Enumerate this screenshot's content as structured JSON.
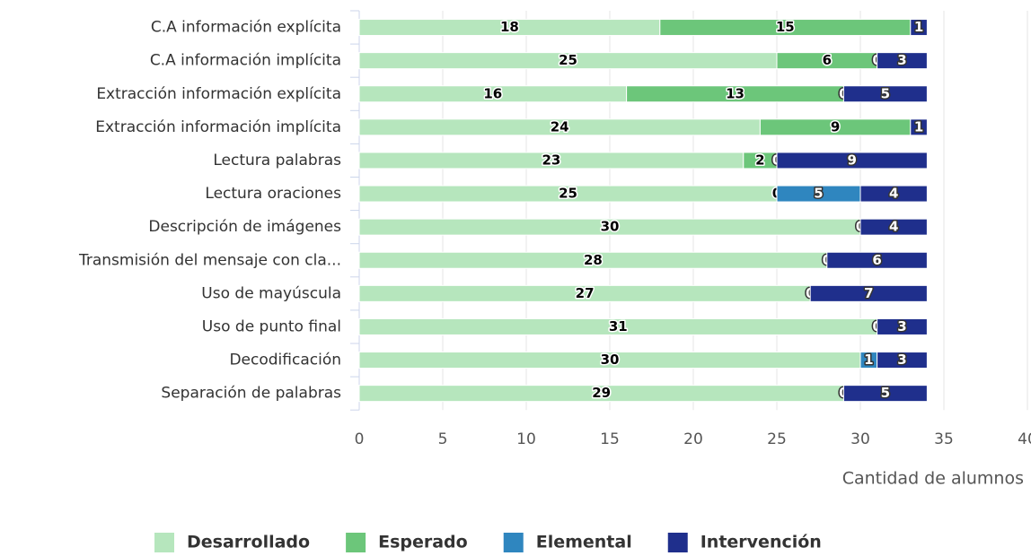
{
  "chart_data": {
    "type": "stacked_barh",
    "categories": [
      "C.A información explícita",
      "C.A información implícita",
      "Extracción información explícita",
      "Extracción información implícita",
      "Lectura palabras",
      "Lectura oraciones",
      "Descripción de imágenes",
      "Transmisión del mensaje con cla...",
      "Uso de mayúscula",
      "Uso de punto final",
      "Decodificación",
      "Separación de palabras"
    ],
    "series": [
      {
        "name": "Desarrollado",
        "color": "#b6e6bd",
        "values": [
          18,
          25,
          16,
          24,
          23,
          25,
          30,
          28,
          27,
          31,
          30,
          29
        ]
      },
      {
        "name": "Esperado",
        "color": "#6cc67a",
        "values": [
          15,
          6,
          13,
          9,
          2,
          0,
          null,
          null,
          null,
          null,
          null,
          null
        ]
      },
      {
        "name": "Elemental",
        "color": "#2f86bf",
        "values": [
          null,
          0,
          0,
          null,
          0,
          5,
          0,
          0,
          0,
          0,
          1,
          0
        ]
      },
      {
        "name": "Intervención",
        "color": "#1f2f8c",
        "values": [
          1,
          3,
          5,
          1,
          9,
          4,
          4,
          6,
          7,
          3,
          3,
          5
        ]
      }
    ],
    "xlim": [
      0,
      40
    ],
    "xticks": [
      0,
      5,
      10,
      15,
      20,
      25,
      30,
      35,
      40
    ],
    "xlabel": "Cantidad de alumnos",
    "grid": true
  }
}
